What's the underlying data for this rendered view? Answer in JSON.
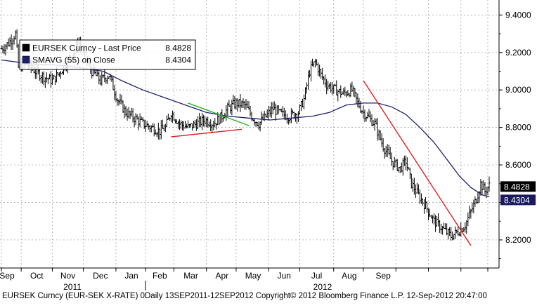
{
  "chart_data": {
    "type": "line",
    "subtype": "ohlc-bar",
    "legend": {
      "placement": "top-left",
      "entries": [
        {
          "name": "EURSEK Curncy - Last Price",
          "value": "8.4828",
          "color": "#000000"
        },
        {
          "name": "SMAVG (55) on Close",
          "value": "8.4304",
          "color": "#1f1f6e"
        }
      ]
    },
    "y_axis": {
      "position": "right",
      "ylim": [
        8.05,
        9.48
      ],
      "ticks": [
        "9.4000",
        "9.2000",
        "9.0000",
        "8.8000",
        "8.6000",
        "8.4000",
        "8.2000"
      ],
      "tick_values": [
        9.4,
        9.2,
        9.0,
        8.8,
        8.6,
        8.4,
        8.2
      ]
    },
    "x_axis": {
      "month_labels": [
        "Sep",
        "Oct",
        "Nov",
        "Dec",
        "Jan",
        "Feb",
        "Mar",
        "Apr",
        "May",
        "Jun",
        "Jul",
        "Aug",
        "Sep"
      ],
      "year_labels": [
        "2011",
        "2012"
      ]
    },
    "last_price_tag": {
      "value": "8.4828",
      "color": "#ffffff",
      "background": "#000000"
    },
    "sma_tag": {
      "value": "8.4304",
      "color": "#ffffff",
      "background": "#1a1a5e"
    },
    "series": [
      {
        "name": "EURSEK Curncy",
        "style": "ohlc",
        "color": "#000000",
        "anchors": [
          [
            0,
            9.22
          ],
          [
            5,
            9.25
          ],
          [
            10,
            9.3
          ],
          [
            12,
            9.12
          ],
          [
            18,
            9.14
          ],
          [
            24,
            9.1
          ],
          [
            30,
            9.07
          ],
          [
            36,
            9.05
          ],
          [
            42,
            9.1
          ],
          [
            48,
            9.17
          ],
          [
            55,
            9.25
          ],
          [
            60,
            9.16
          ],
          [
            64,
            9.1
          ],
          [
            70,
            9.05
          ],
          [
            76,
            9.08
          ],
          [
            82,
            8.95
          ],
          [
            88,
            8.88
          ],
          [
            94,
            8.85
          ],
          [
            100,
            8.82
          ],
          [
            106,
            8.8
          ],
          [
            112,
            8.78
          ],
          [
            116,
            8.8
          ],
          [
            120,
            8.88
          ],
          [
            126,
            8.82
          ],
          [
            132,
            8.8
          ],
          [
            138,
            8.82
          ],
          [
            144,
            8.84
          ],
          [
            150,
            8.82
          ],
          [
            156,
            8.86
          ],
          [
            160,
            8.9
          ],
          [
            166,
            8.93
          ],
          [
            172,
            8.92
          ],
          [
            178,
            8.85
          ],
          [
            182,
            8.82
          ],
          [
            186,
            8.85
          ],
          [
            192,
            8.9
          ],
          [
            198,
            8.87
          ],
          [
            204,
            8.86
          ],
          [
            210,
            8.88
          ],
          [
            214,
            8.95
          ],
          [
            218,
            9.1
          ],
          [
            222,
            9.15
          ],
          [
            226,
            9.08
          ],
          [
            230,
            9.03
          ],
          [
            236,
            9.0
          ],
          [
            242,
            8.98
          ],
          [
            248,
            9.0
          ],
          [
            252,
            8.93
          ],
          [
            256,
            8.88
          ],
          [
            260,
            8.85
          ],
          [
            264,
            8.82
          ],
          [
            270,
            8.7
          ],
          [
            276,
            8.62
          ],
          [
            282,
            8.58
          ],
          [
            286,
            8.62
          ],
          [
            290,
            8.5
          ],
          [
            294,
            8.45
          ],
          [
            300,
            8.38
          ],
          [
            306,
            8.3
          ],
          [
            312,
            8.26
          ],
          [
            318,
            8.22
          ],
          [
            324,
            8.25
          ],
          [
            328,
            8.28
          ],
          [
            332,
            8.35
          ],
          [
            336,
            8.42
          ],
          [
            339,
            8.5
          ],
          [
            342,
            8.46
          ],
          [
            345,
            8.49
          ]
        ]
      },
      {
        "name": "SMAVG (55) on Close",
        "style": "line",
        "color": "#1f1f6e",
        "points": [
          [
            0,
            9.16
          ],
          [
            20,
            9.14
          ],
          [
            45,
            9.13
          ],
          [
            55,
            9.12
          ],
          [
            62,
            9.11
          ],
          [
            72,
            9.1
          ],
          [
            85,
            9.05
          ],
          [
            100,
            9.0
          ],
          [
            115,
            8.96
          ],
          [
            130,
            8.92
          ],
          [
            145,
            8.88
          ],
          [
            160,
            8.86
          ],
          [
            175,
            8.85
          ],
          [
            190,
            8.84
          ],
          [
            205,
            8.85
          ],
          [
            220,
            8.86
          ],
          [
            232,
            8.88
          ],
          [
            244,
            8.92
          ],
          [
            256,
            8.93
          ],
          [
            266,
            8.93
          ],
          [
            276,
            8.91
          ],
          [
            286,
            8.87
          ],
          [
            296,
            8.8
          ],
          [
            306,
            8.72
          ],
          [
            316,
            8.62
          ],
          [
            324,
            8.54
          ],
          [
            332,
            8.48
          ],
          [
            340,
            8.44
          ],
          [
            345,
            8.43
          ]
        ]
      }
    ],
    "trendlines": [
      {
        "name": "support",
        "color": "#e02020",
        "from": [
          120,
          8.75
        ],
        "to": [
          170,
          8.79
        ]
      },
      {
        "name": "resistance",
        "color": "#22b822",
        "from": [
          132,
          8.93
        ],
        "to": [
          175,
          8.81
        ]
      },
      {
        "name": "downtrend",
        "color": "#e02020",
        "from": [
          256,
          9.05
        ],
        "to": [
          332,
          8.17
        ]
      }
    ],
    "grid": {
      "x": true,
      "y": true,
      "style": "dashed"
    }
  },
  "footer": {
    "text": "EURSEK Curncy (EUR-SEK X-RATE) 0Daily 13SEP2011-12SEP2012 Copyright© 2012 Bloomberg Finance L.P. 12-Sep-2012 20:47:00"
  }
}
